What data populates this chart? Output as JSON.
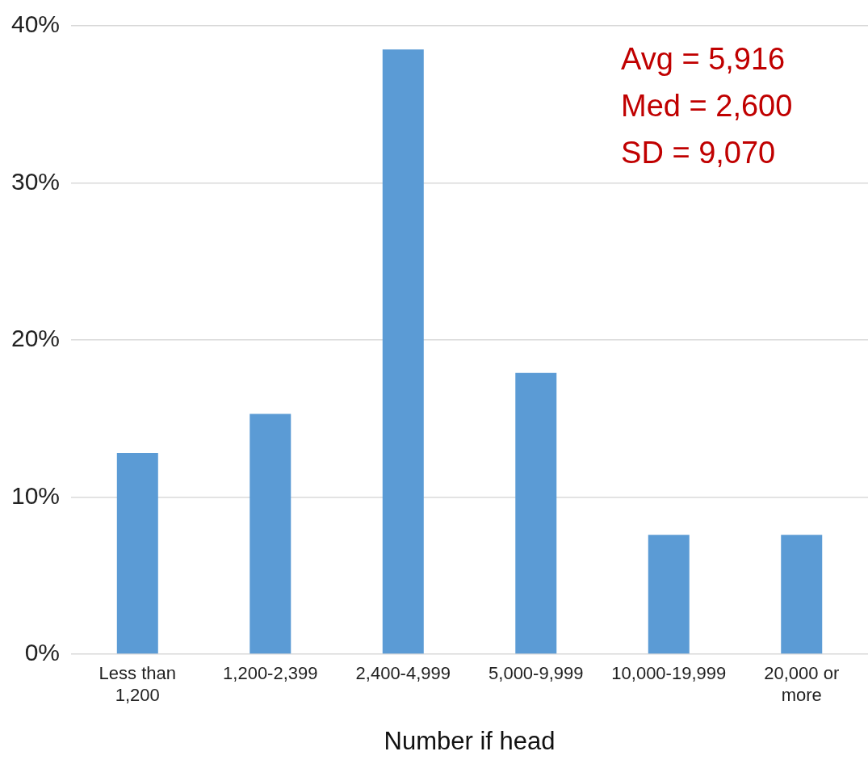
{
  "chart_data": {
    "type": "bar",
    "xlabel": "Number if head",
    "categories": [
      "Less than 1,200",
      "1,200-2,399",
      "2,400-4,999",
      "5,000-9,999",
      "10,000-19,999",
      "20,000 or more"
    ],
    "values": [
      12.8,
      15.3,
      38.5,
      17.9,
      7.6,
      7.6
    ],
    "color": "#5b9bd5",
    "ylim": [
      0,
      40
    ],
    "yticks": [
      {
        "value": 0,
        "label": "0%"
      },
      {
        "value": 10,
        "label": "10%"
      },
      {
        "value": 20,
        "label": "20%"
      },
      {
        "value": 30,
        "label": "30%"
      },
      {
        "value": 40,
        "label": "40%"
      }
    ],
    "grid": "y",
    "legend": false,
    "annotations": [
      "Avg = 5,916",
      "Med = 2,600",
      "SD = 9,070"
    ]
  }
}
